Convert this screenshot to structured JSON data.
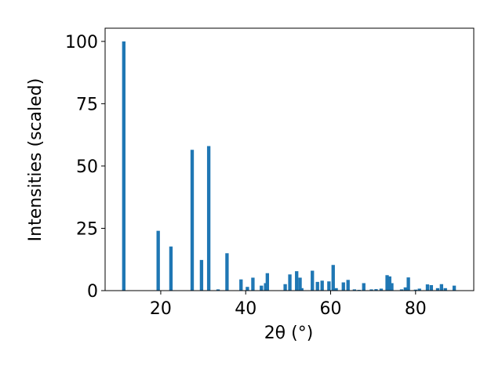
{
  "chart_data": {
    "type": "bar",
    "x_label": "2θ (°)",
    "y_label": "Intensities (scaled)",
    "x": [
      11.3,
      19.4,
      22.4,
      27.4,
      29.6,
      31.3,
      33.5,
      35.6,
      38.9,
      40.4,
      41.7,
      43.7,
      44.7,
      45.1,
      49.3,
      50.4,
      52.0,
      52.8,
      53.2,
      55.7,
      56.9,
      58.0,
      59.6,
      60.6,
      61.3,
      63.0,
      64.1,
      65.6,
      66.7,
      67.8,
      69.6,
      70.7,
      71.9,
      73.3,
      73.9,
      74.4,
      76.7,
      77.6,
      78.3,
      80.0,
      80.9,
      82.8,
      83.7,
      85.2,
      86.1,
      87.0,
      89.1
    ],
    "values": [
      100,
      24,
      17.7,
      56.5,
      12.3,
      58,
      0.5,
      15,
      4.5,
      1.5,
      5.2,
      2,
      3,
      7,
      2.6,
      6.5,
      7.8,
      5.2,
      1,
      8,
      3.5,
      4,
      3.7,
      10.3,
      1,
      3.3,
      4.3,
      0.5,
      0.3,
      3,
      0.5,
      0.6,
      0.8,
      6.2,
      5.7,
      3,
      0.5,
      1.3,
      5.3,
      0.4,
      0.8,
      2.5,
      2.2,
      1,
      2.6,
      1,
      2
    ],
    "color": "#1f77b4",
    "xlim": [
      6.9,
      93.7
    ],
    "ylim": [
      0,
      105.3
    ],
    "xticks": [
      20,
      40,
      60,
      80
    ],
    "yticks": [
      0,
      25,
      50,
      75,
      100
    ]
  }
}
